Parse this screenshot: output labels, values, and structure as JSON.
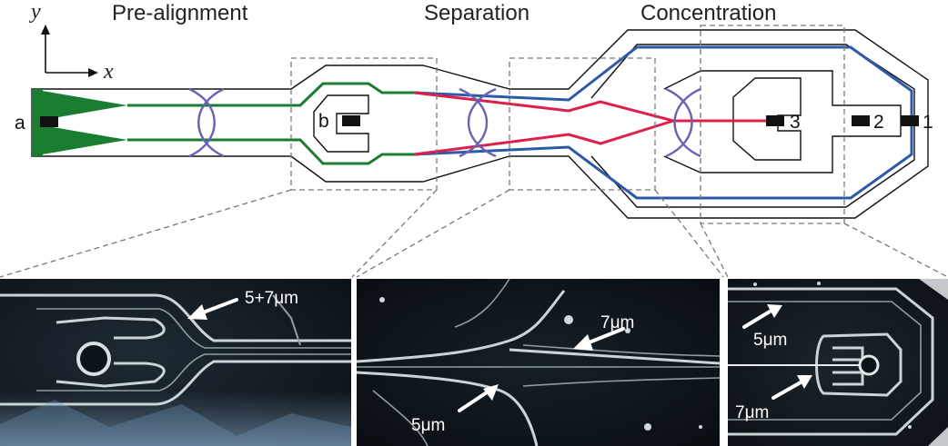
{
  "axes": {
    "x_label": "x",
    "y_label": "y"
  },
  "sections": {
    "prealignment": "Pre-alignment",
    "separation": "Separation",
    "concentration": "Concentration"
  },
  "outlets": {
    "inlet_a": "a",
    "inlet_b": "b",
    "outlet_1": "1",
    "outlet_2": "2",
    "outlet_3": "3"
  },
  "colors": {
    "prealignment_stream": "#1b7d32",
    "large_particle_stream": "#2c5aa7",
    "small_particle_stream": "#de1f4a",
    "acoustic_node": "#6663b5"
  },
  "photos": {
    "prealignment": {
      "label": "5+7μm"
    },
    "separation": {
      "label_top": "7μm",
      "label_bottom": "5μm"
    },
    "concentration": {
      "label_top": "5μm",
      "label_bottom": "7μm"
    }
  }
}
